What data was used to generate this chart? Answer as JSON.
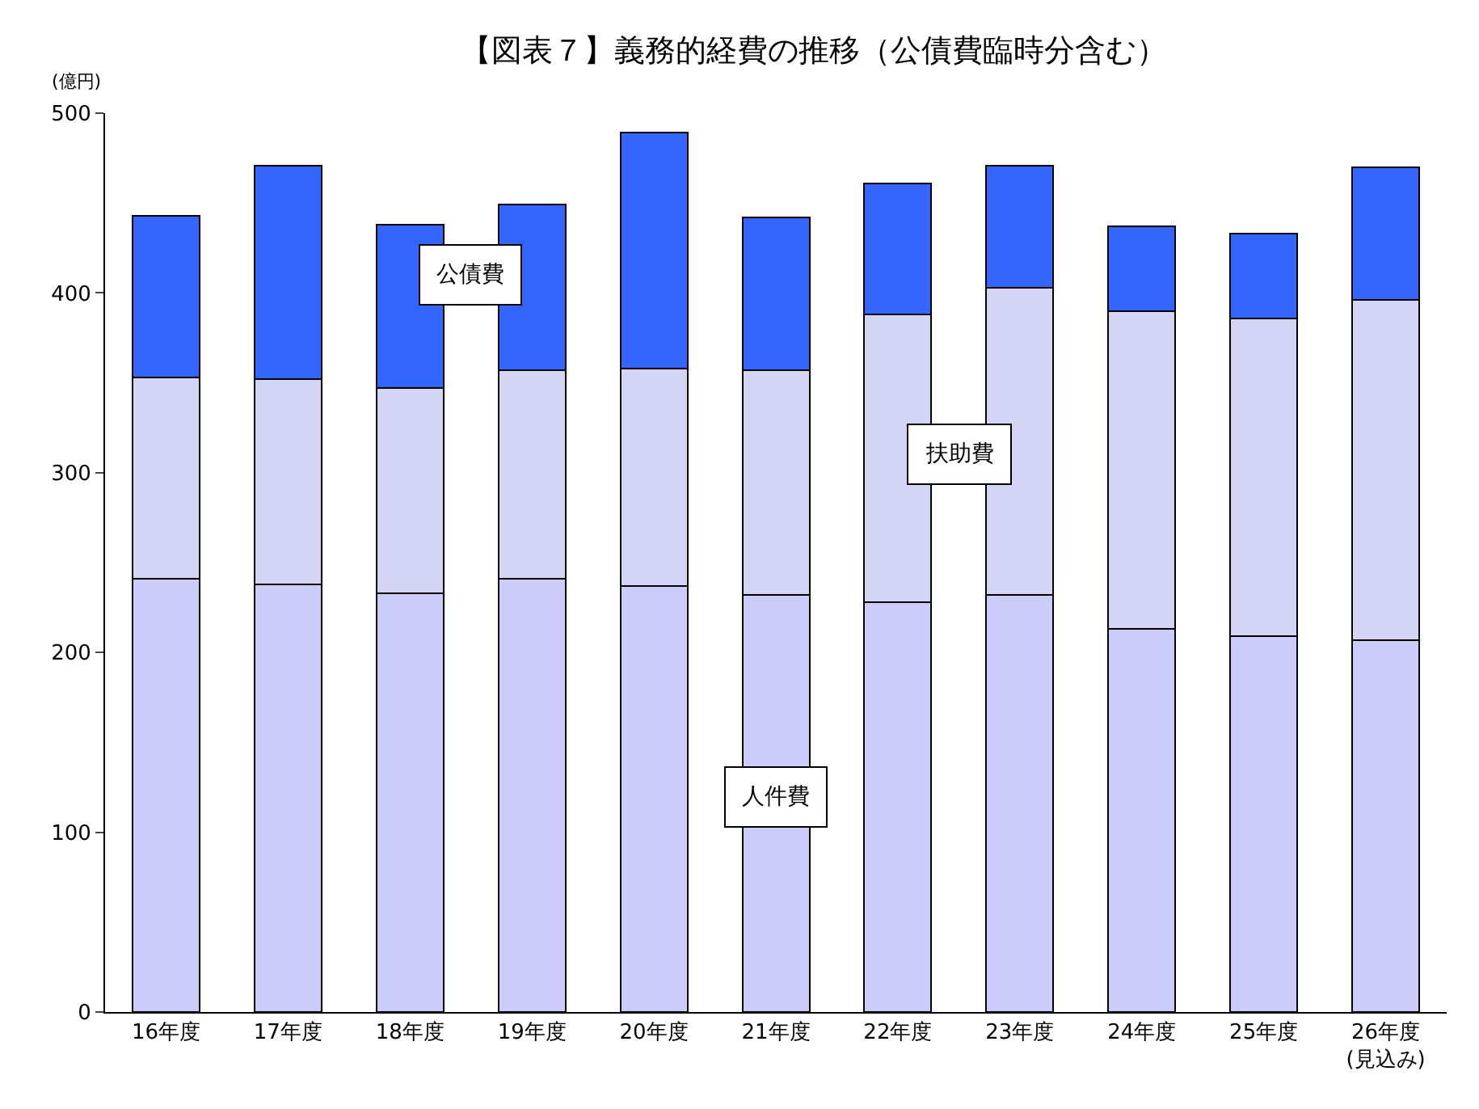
{
  "chart_data": {
    "type": "bar",
    "title": "【図表７】義務的経費の推移（公債費臨時分含む）",
    "ylabel": "(億円)",
    "categories": [
      "16年度",
      "17年度",
      "18年度",
      "19年度",
      "20年度",
      "21年度",
      "22年度",
      "23年度",
      "24年度",
      "25年度",
      "26年度\n(見込み)"
    ],
    "stacked": true,
    "series": [
      {
        "name": "人件費",
        "color": "#ccccfa",
        "values": [
          241,
          238,
          233,
          241,
          237,
          232,
          228,
          232,
          213,
          209,
          207
        ]
      },
      {
        "name": "扶助費",
        "color": "#d4d4f4",
        "values": [
          112,
          114,
          114,
          116,
          121,
          125,
          160,
          171,
          177,
          177,
          189
        ]
      },
      {
        "name": "公債費",
        "color": "#3366ff",
        "values": [
          90,
          119,
          91,
          92,
          131,
          85,
          73,
          68,
          47,
          47,
          74
        ]
      }
    ],
    "ylim": [
      0,
      500
    ],
    "yticks": [
      0,
      100,
      200,
      300,
      400,
      500
    ],
    "legend": false
  }
}
